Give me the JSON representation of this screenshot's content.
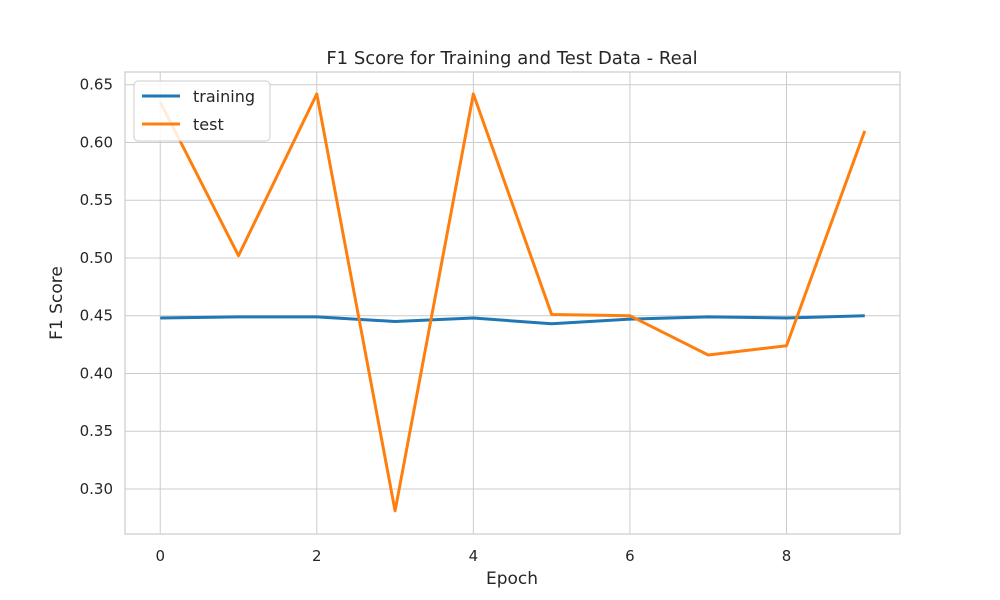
{
  "chart_data": {
    "type": "line",
    "title": "F1 Score for Training and Test Data - Real",
    "xlabel": "Epoch",
    "ylabel": "F1 Score",
    "x": [
      0,
      1,
      2,
      3,
      4,
      5,
      6,
      7,
      8,
      9
    ],
    "xlim": [
      -0.45,
      9.45
    ],
    "ylim": [
      0.261,
      0.661
    ],
    "xticks": [
      0,
      2,
      4,
      6,
      8
    ],
    "yticks": [
      0.3,
      0.35,
      0.4,
      0.45,
      0.5,
      0.55,
      0.6,
      0.65
    ],
    "xtick_labels": [
      "0",
      "2",
      "4",
      "6",
      "8"
    ],
    "ytick_labels": [
      "0.30",
      "0.35",
      "0.40",
      "0.45",
      "0.50",
      "0.55",
      "0.60",
      "0.65"
    ],
    "grid": true,
    "legend_position": "top-left",
    "series": [
      {
        "name": "training",
        "color": "#1f77b4",
        "values": [
          0.448,
          0.449,
          0.449,
          0.445,
          0.448,
          0.443,
          0.447,
          0.449,
          0.448,
          0.45
        ]
      },
      {
        "name": "test",
        "color": "#ff7f0e",
        "values": [
          0.635,
          0.502,
          0.642,
          0.281,
          0.642,
          0.451,
          0.45,
          0.416,
          0.424,
          0.61
        ]
      }
    ]
  }
}
